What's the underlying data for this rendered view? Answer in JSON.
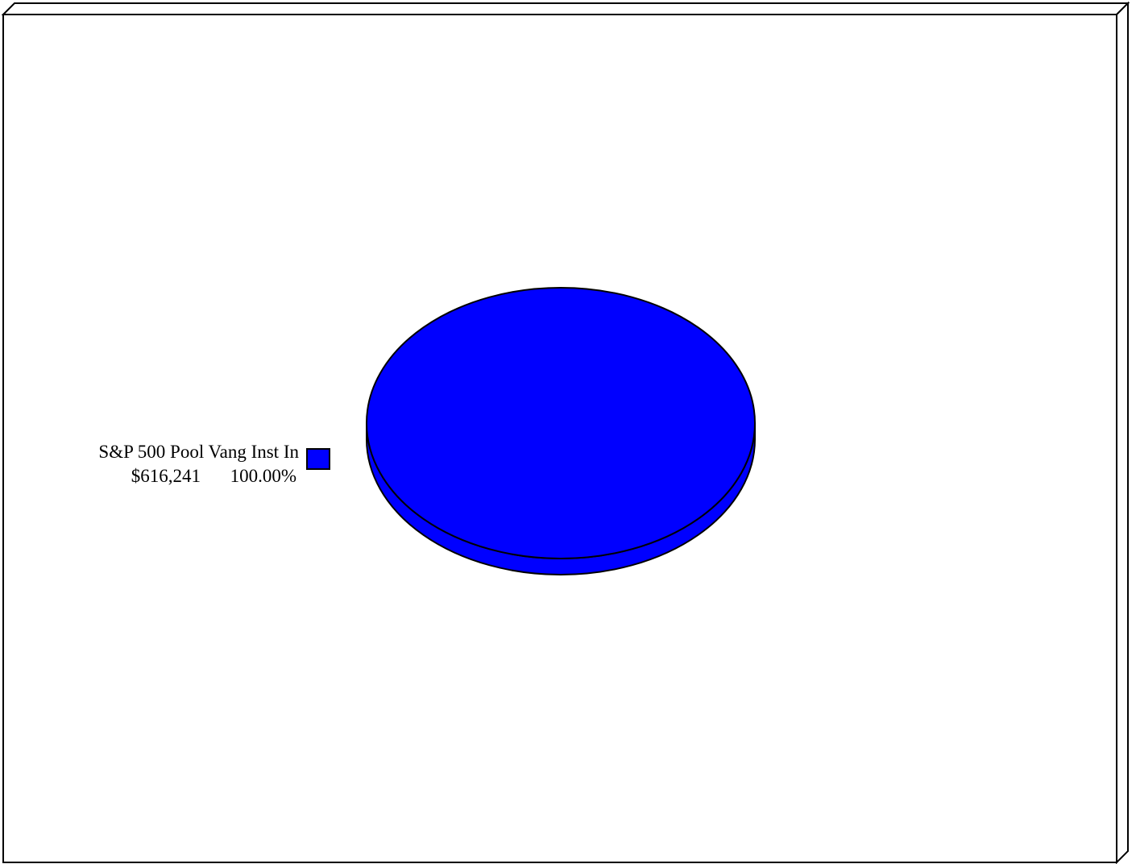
{
  "chart_data": {
    "type": "pie",
    "style": "3d",
    "title": "",
    "legend_position": "left",
    "slices": [
      {
        "label": "S&P 500 Pool Vang Inst In",
        "value_text": "$616,241",
        "percent_text": "100.00%",
        "value": 616241,
        "percent": 100.0,
        "color": "#0000ff"
      }
    ]
  },
  "colors": {
    "background": "#ffffff",
    "frame_border": "#000000",
    "slice_fill": "#0000ff",
    "slice_outline": "#000000"
  }
}
